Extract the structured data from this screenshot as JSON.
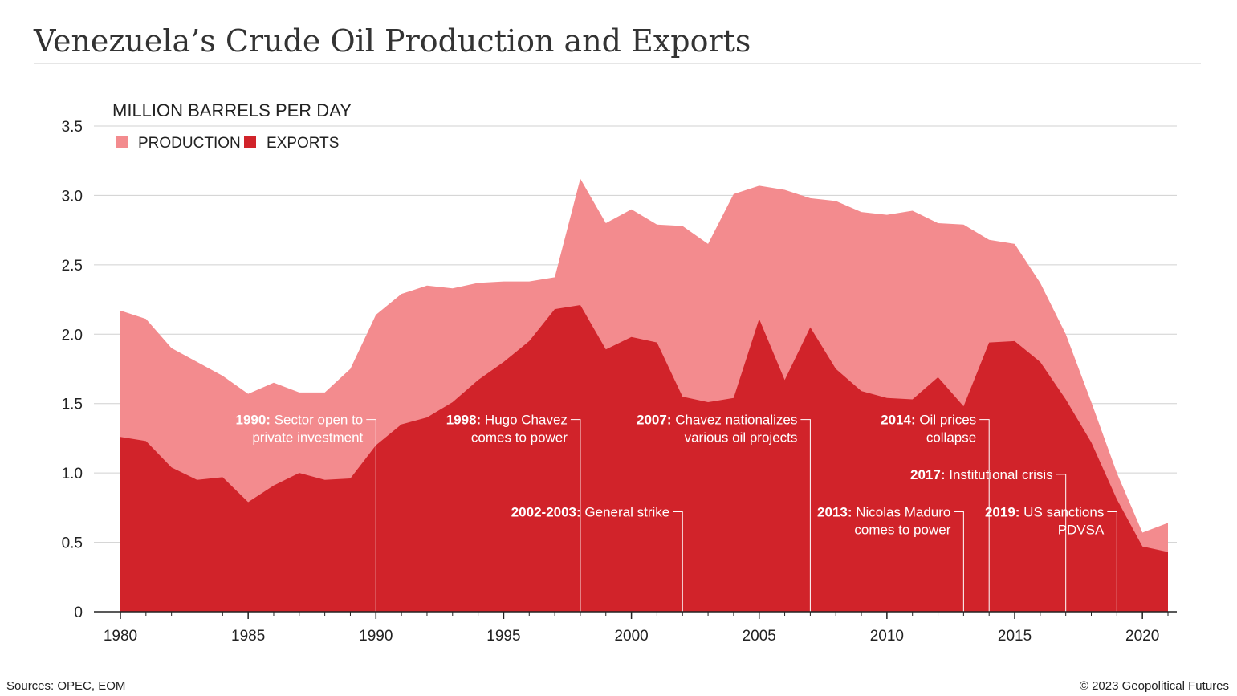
{
  "title": "Venezuela’s Crude Oil Production and Exports",
  "footer": {
    "sources": "Sources: OPEC, EOM",
    "copyright": "© 2023 Geopolitical Futures"
  },
  "colors": {
    "production": "#f38b8e",
    "exports": "#d1232a",
    "grid": "#d0d0d0",
    "axis": "#222222"
  },
  "chart_data": {
    "type": "area",
    "ylabel": "MILLION BARRELS PER DAY",
    "ylim": [
      0,
      3.5
    ],
    "xlim": [
      1980,
      2021
    ],
    "yticks": [
      {
        "value": 0,
        "label": "0"
      },
      {
        "value": 0.5,
        "label": "0.5"
      },
      {
        "value": 1.0,
        "label": "1.0"
      },
      {
        "value": 1.5,
        "label": "1.5"
      },
      {
        "value": 2.0,
        "label": "2.0"
      },
      {
        "value": 2.5,
        "label": "2.5"
      },
      {
        "value": 3.0,
        "label": "3.0"
      },
      {
        "value": 3.5,
        "label": "3.5"
      }
    ],
    "xticks": [
      1980,
      1985,
      1990,
      1995,
      2000,
      2005,
      2010,
      2015,
      2020
    ],
    "grid": true,
    "legend_position": "top-left",
    "x": [
      1980,
      1981,
      1982,
      1983,
      1984,
      1985,
      1986,
      1987,
      1988,
      1989,
      1990,
      1991,
      1992,
      1993,
      1994,
      1995,
      1996,
      1997,
      1998,
      1999,
      2000,
      2001,
      2002,
      2003,
      2004,
      2005,
      2006,
      2007,
      2008,
      2009,
      2010,
      2011,
      2012,
      2013,
      2014,
      2015,
      2016,
      2017,
      2018,
      2019,
      2020,
      2021
    ],
    "series": [
      {
        "name": "PRODUCTION",
        "values": [
          2.17,
          2.11,
          1.9,
          1.8,
          1.7,
          1.57,
          1.65,
          1.58,
          1.58,
          1.75,
          2.14,
          2.29,
          2.35,
          2.33,
          2.37,
          2.38,
          2.38,
          2.41,
          3.12,
          2.8,
          2.9,
          2.79,
          2.78,
          2.65,
          3.01,
          3.07,
          3.04,
          2.98,
          2.96,
          2.88,
          2.86,
          2.89,
          2.8,
          2.79,
          2.68,
          2.65,
          2.37,
          2.0,
          1.51,
          1.0,
          0.57,
          0.64
        ]
      },
      {
        "name": "EXPORTS",
        "values": [
          1.26,
          1.23,
          1.04,
          0.95,
          0.97,
          0.79,
          0.91,
          1.0,
          0.95,
          0.96,
          1.2,
          1.35,
          1.4,
          1.51,
          1.67,
          1.8,
          1.95,
          2.18,
          2.21,
          1.89,
          1.98,
          1.94,
          1.55,
          1.51,
          1.54,
          2.11,
          1.67,
          2.05,
          1.75,
          1.59,
          1.54,
          1.53,
          1.69,
          1.48,
          1.94,
          1.95,
          1.8,
          1.53,
          1.22,
          0.81,
          0.47,
          0.43
        ]
      }
    ],
    "annotations": [
      {
        "year": 1990,
        "label_year": "1990:",
        "text1": " Sector open to",
        "text2": "private investment",
        "anchor_value": 1.385
      },
      {
        "year": 1998,
        "label_year": "1998:",
        "text1": " Hugo Chavez",
        "text2": "comes to power",
        "anchor_value": 1.385
      },
      {
        "year": 2002,
        "label_year": "2002-2003:",
        "text1": " General strike",
        "text2": "",
        "anchor_value": 0.72
      },
      {
        "year": 2007,
        "label_year": "2007:",
        "text1": " Chavez nationalizes",
        "text2": "various oil projects",
        "anchor_value": 1.385
      },
      {
        "year": 2013,
        "label_year": "2013:",
        "text1": " Nicolas Maduro",
        "text2": "comes to power",
        "anchor_value": 0.72
      },
      {
        "year": 2014,
        "label_year": "2014:",
        "text1": " Oil prices",
        "text2": "collapse",
        "anchor_value": 1.385
      },
      {
        "year": 2017,
        "label_year": "2017:",
        "text1": " Institutional crisis",
        "text2": "",
        "anchor_value": 0.99
      },
      {
        "year": 2019,
        "label_year": "2019:",
        "text1": " US sanctions",
        "text2": "PDVSA",
        "anchor_value": 0.72
      }
    ]
  }
}
